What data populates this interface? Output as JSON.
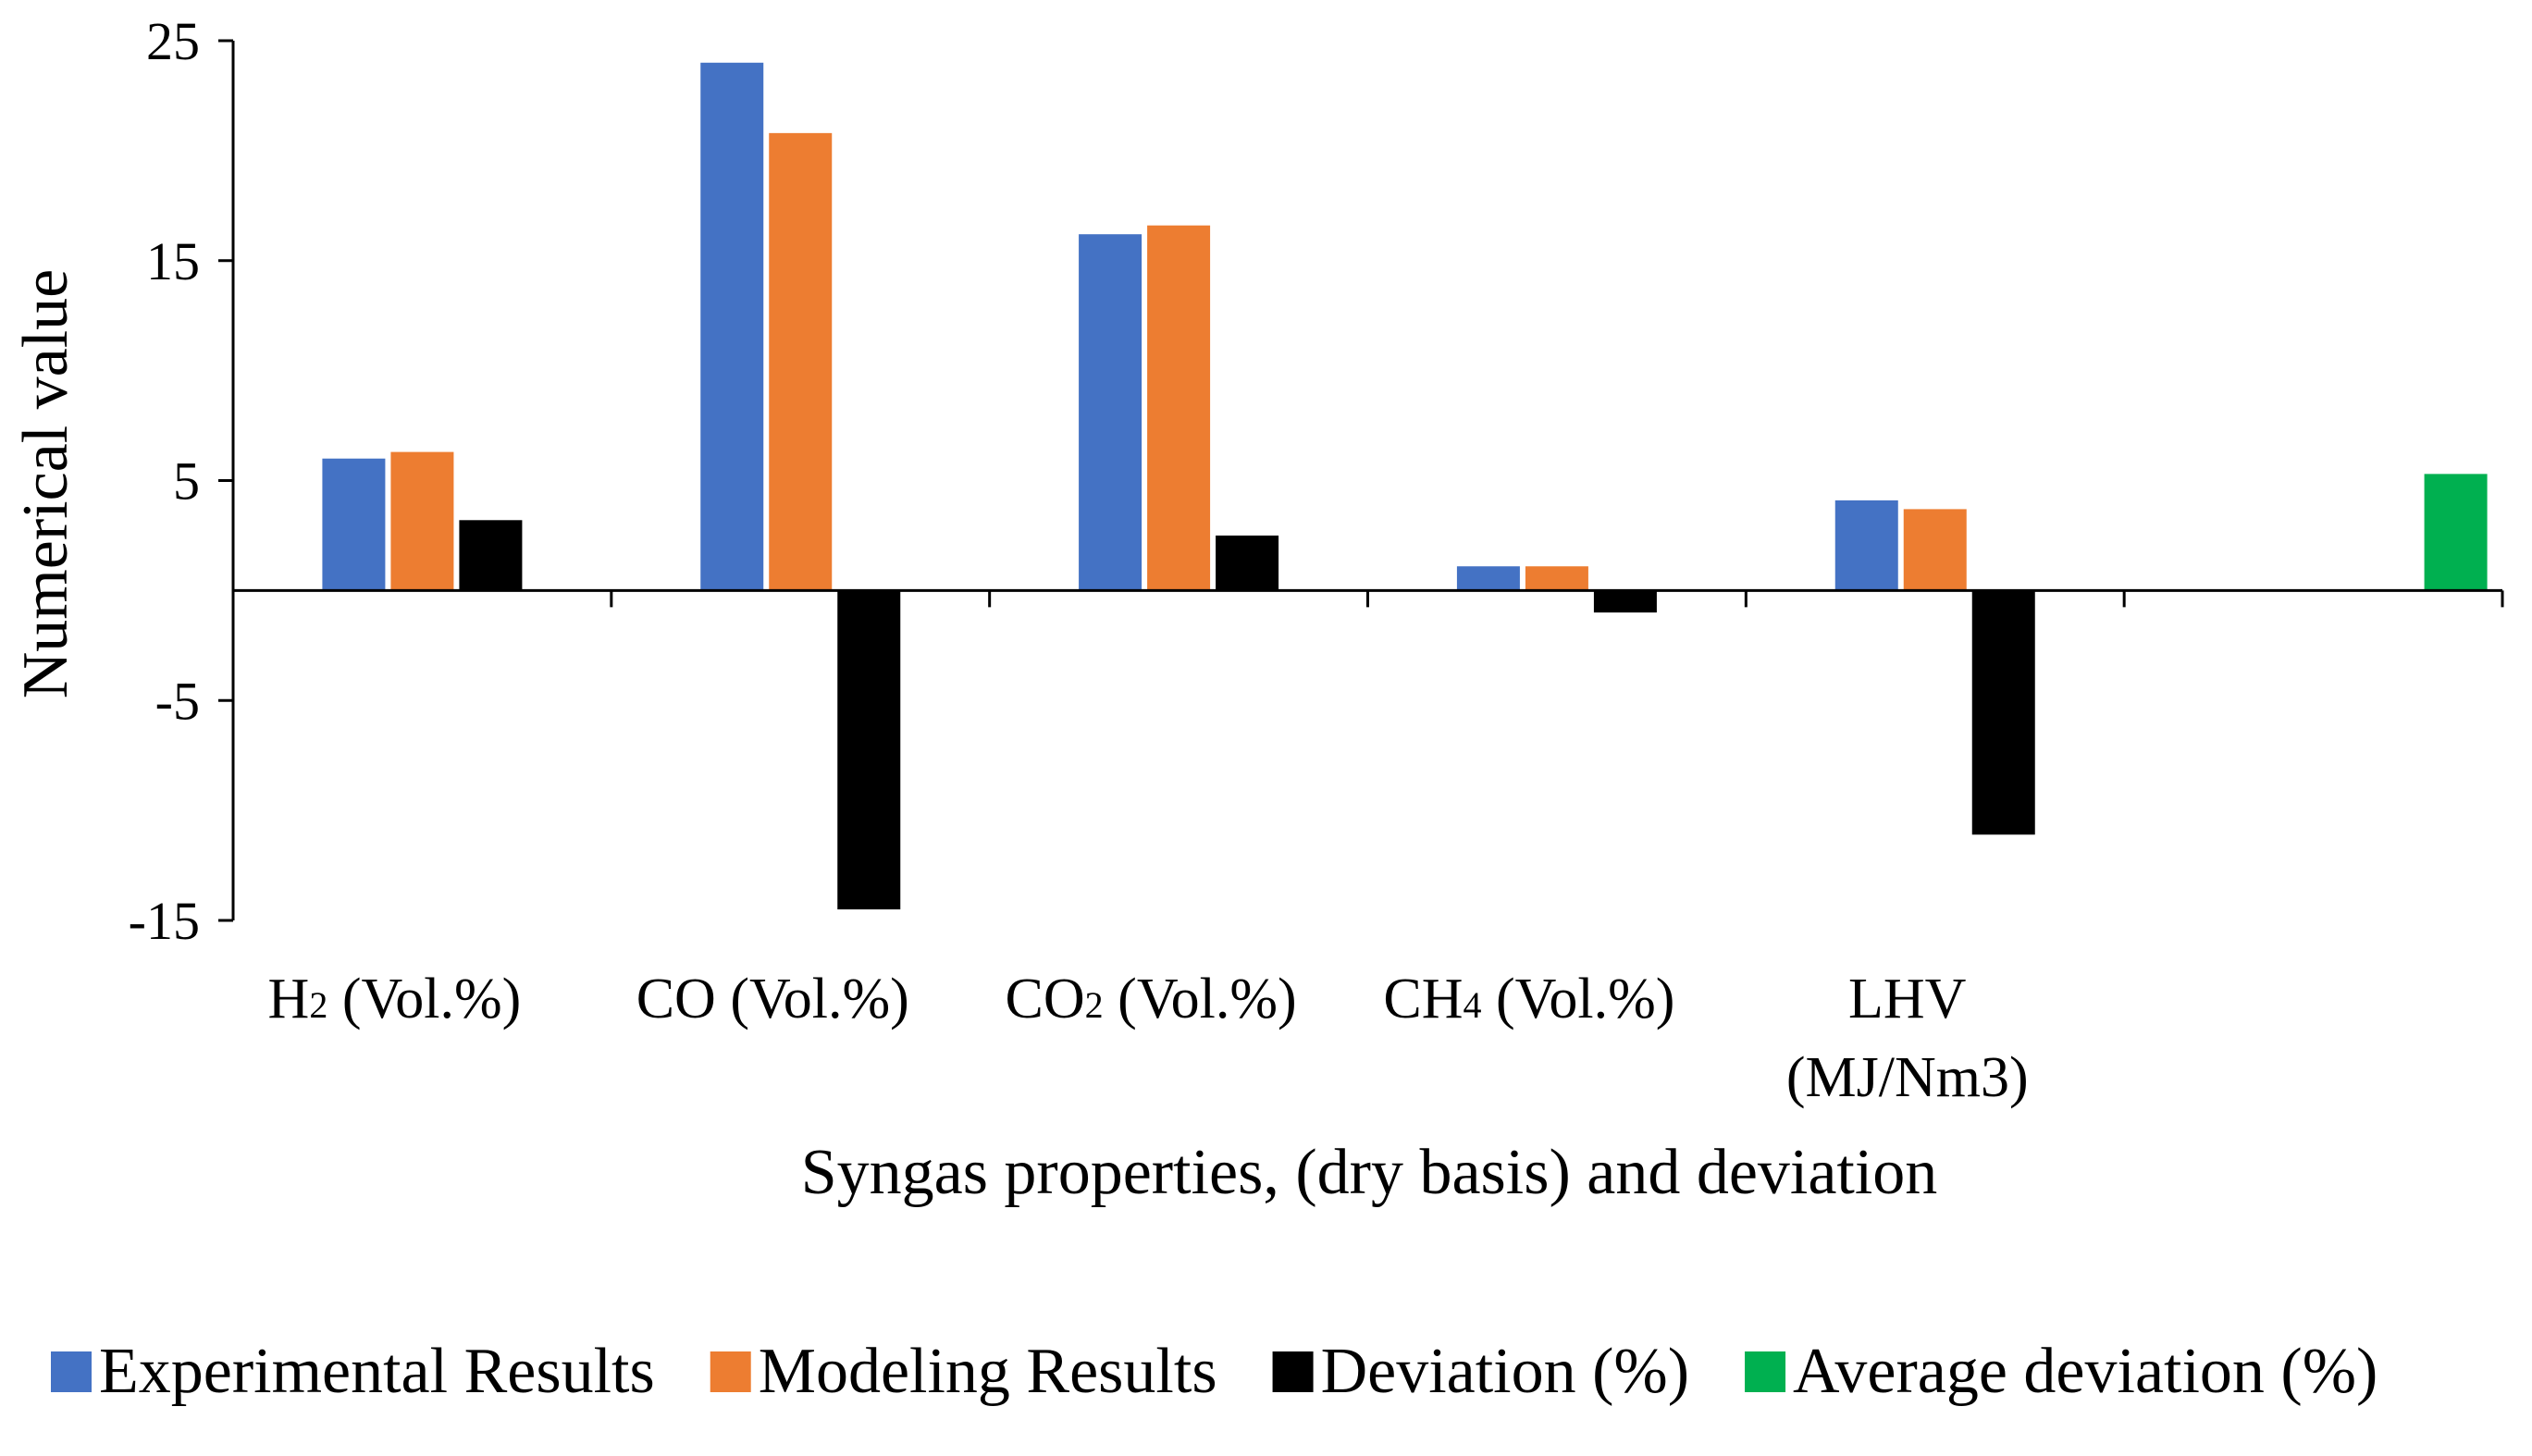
{
  "chart_data": {
    "type": "bar",
    "categories": [
      {
        "main": "H",
        "sub": "2",
        "rest": " (Vol.%)"
      },
      {
        "main": "CO (Vol.%)",
        "sub": "",
        "rest": ""
      },
      {
        "main": "CO",
        "sub": "2",
        "rest": " (Vol.%)"
      },
      {
        "main": "CH",
        "sub": "4",
        "rest": " (Vol.%)"
      },
      {
        "main": "LHV",
        "sub": "",
        "rest": "",
        "line2": "(MJ/Nm3)"
      },
      {
        "main": "",
        "sub": "",
        "rest": ""
      }
    ],
    "series": [
      {
        "name": "Experimental Results",
        "color": "#4472C4",
        "values": [
          6.0,
          24.0,
          16.2,
          1.1,
          4.1,
          null
        ]
      },
      {
        "name": "Modeling Results",
        "color": "#ED7D31",
        "values": [
          6.3,
          20.8,
          16.6,
          1.1,
          3.7,
          null
        ]
      },
      {
        "name": "Deviation (%)",
        "color": "#000000",
        "values": [
          3.2,
          -14.5,
          2.5,
          -1.0,
          -11.1,
          null
        ]
      },
      {
        "name": "Average deviation (%)",
        "color": "#00B050",
        "values": [
          null,
          null,
          null,
          null,
          null,
          5.3
        ]
      }
    ],
    "ylabel": "Numerical value",
    "xlabel": "Syngas properties, (dry basis) and deviation",
    "ylim": [
      -15,
      25
    ],
    "yticks": [
      "25",
      "15",
      "5",
      "-5",
      "-15"
    ],
    "grid": false,
    "legend_position": "bottom"
  }
}
